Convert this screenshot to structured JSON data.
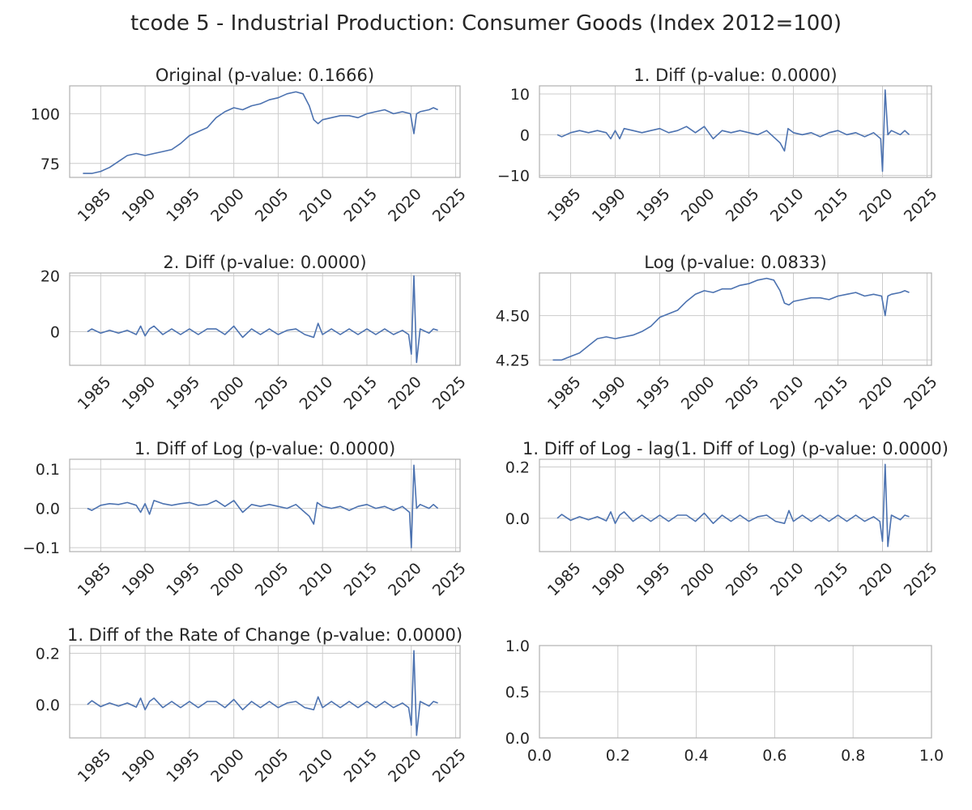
{
  "figure_title": "tcode 5 - Industrial Production: Consumer Goods (Index 2012=100)",
  "colors": {
    "line": "#4c72b0",
    "grid": "#cccccc",
    "axis": "#b0b0b0",
    "text": "#262626"
  },
  "chart_data": [
    {
      "type": "line",
      "title": "Original (p-value: 0.1666)",
      "xlabel": "",
      "ylabel": "",
      "xlim": [
        1981.5,
        2025.5
      ],
      "ylim": [
        68,
        114
      ],
      "xticks": [
        1985,
        1990,
        1995,
        2000,
        2005,
        2010,
        2015,
        2020,
        2025
      ],
      "xtick_labels": [
        "1985",
        "1990",
        "1995",
        "2000",
        "2005",
        "2010",
        "2015",
        "2020",
        "2025"
      ],
      "yticks": [
        75,
        100
      ],
      "ytick_labels": [
        "75",
        "100"
      ],
      "grid": true,
      "x": [
        1983,
        1984,
        1985,
        1986,
        1987,
        1988,
        1989,
        1990,
        1991,
        1992,
        1993,
        1994,
        1995,
        1996,
        1997,
        1998,
        1999,
        2000,
        2001,
        2002,
        2003,
        2004,
        2005,
        2006,
        2007,
        2007.8,
        2008.5,
        2009,
        2009.5,
        2010,
        2011,
        2012,
        2013,
        2014,
        2015,
        2016,
        2017,
        2018,
        2019,
        2019.9,
        2020.3,
        2020.6,
        2021,
        2022,
        2022.5,
        2023
      ],
      "y": [
        70,
        70,
        71,
        73,
        76,
        79,
        80,
        79,
        80,
        81,
        82,
        85,
        89,
        91,
        93,
        98,
        101,
        103,
        102,
        104,
        105,
        107,
        108,
        110,
        111,
        110,
        104,
        97,
        95,
        97,
        98,
        99,
        99,
        98,
        100,
        101,
        102,
        100,
        101,
        100,
        90,
        100,
        101,
        102,
        103,
        102
      ]
    },
    {
      "type": "line",
      "title": "1. Diff (p-value: 0.0000)",
      "xlabel": "",
      "ylabel": "",
      "xlim": [
        1981.5,
        2025.5
      ],
      "ylim": [
        -10.5,
        12
      ],
      "xticks": [
        1985,
        1990,
        1995,
        2000,
        2005,
        2010,
        2015,
        2020,
        2025
      ],
      "xtick_labels": [
        "1985",
        "1990",
        "1995",
        "2000",
        "2005",
        "2010",
        "2015",
        "2020",
        "2025"
      ],
      "yticks": [
        -10,
        0,
        10
      ],
      "ytick_labels": [
        "−10",
        "0",
        "10"
      ],
      "grid": true,
      "x": [
        1983.5,
        1984,
        1985,
        1986,
        1987,
        1988,
        1989,
        1989.5,
        1990,
        1990.5,
        1991,
        1992,
        1993,
        1994,
        1995,
        1996,
        1997,
        1998,
        1999,
        2000,
        2001,
        2002,
        2003,
        2004,
        2005,
        2006,
        2007,
        2008,
        2008.5,
        2009,
        2009.4,
        2010,
        2011,
        2012,
        2013,
        2014,
        2015,
        2016,
        2017,
        2018,
        2019,
        2019.8,
        2020.0,
        2020.3,
        2020.6,
        2021,
        2022,
        2022.5,
        2023
      ],
      "y": [
        0,
        -0.5,
        0.5,
        1,
        0.5,
        1,
        0.5,
        -1,
        1,
        -1,
        1.5,
        1,
        0.5,
        1,
        1.5,
        0.5,
        1,
        2,
        0.5,
        2,
        -1,
        1,
        0.5,
        1,
        0.5,
        0,
        1,
        -1,
        -2,
        -4,
        1.5,
        0.5,
        0,
        0.5,
        -0.5,
        0.5,
        1,
        0,
        0.5,
        -0.5,
        0.5,
        -1,
        -9,
        11,
        0,
        1,
        0,
        1,
        0
      ]
    },
    {
      "type": "line",
      "title": "2. Diff (p-value: 0.0000)",
      "xlabel": "",
      "ylabel": "",
      "xlim": [
        1981.5,
        2025.5
      ],
      "ylim": [
        -12,
        21
      ],
      "xticks": [
        1985,
        1990,
        1995,
        2000,
        2005,
        2010,
        2015,
        2020,
        2025
      ],
      "xtick_labels": [
        "1985",
        "1990",
        "1995",
        "2000",
        "2005",
        "2010",
        "2015",
        "2020",
        "2025"
      ],
      "yticks": [
        0,
        20
      ],
      "ytick_labels": [
        "0",
        "20"
      ],
      "grid": true,
      "x": [
        1983.5,
        1984,
        1985,
        1986,
        1987,
        1988,
        1989,
        1989.5,
        1990,
        1990.5,
        1991,
        1992,
        1993,
        1994,
        1995,
        1996,
        1997,
        1998,
        1999,
        2000,
        2001,
        2002,
        2003,
        2004,
        2005,
        2006,
        2007,
        2008,
        2009,
        2009.5,
        2010,
        2011,
        2012,
        2013,
        2014,
        2015,
        2016,
        2017,
        2018,
        2019,
        2019.7,
        2020.0,
        2020.3,
        2020.6,
        2021,
        2022,
        2022.5,
        2023
      ],
      "y": [
        0,
        1,
        -0.5,
        0.5,
        -0.5,
        0.5,
        -1,
        2,
        -1.5,
        1,
        2,
        -1,
        1,
        -1,
        1,
        -1,
        1,
        1,
        -1,
        2,
        -2,
        1,
        -1,
        1,
        -1,
        0.5,
        1,
        -1,
        -2,
        3,
        -1,
        1,
        -1,
        1,
        -1,
        1,
        -1,
        1,
        -1,
        0.5,
        -1,
        -8,
        20,
        -11,
        1,
        -0.5,
        1,
        0.5
      ]
    },
    {
      "type": "line",
      "title": "Log (p-value: 0.0833)",
      "xlabel": "",
      "ylabel": "",
      "xlim": [
        1981.5,
        2025.5
      ],
      "ylim": [
        4.22,
        4.74
      ],
      "xticks": [
        1985,
        1990,
        1995,
        2000,
        2005,
        2010,
        2015,
        2020,
        2025
      ],
      "xtick_labels": [
        "1985",
        "1990",
        "1995",
        "2000",
        "2005",
        "2010",
        "2015",
        "2020",
        "2025"
      ],
      "yticks": [
        4.25,
        4.5
      ],
      "ytick_labels": [
        "4.25",
        "4.50"
      ],
      "grid": true,
      "x": [
        1983,
        1984,
        1985,
        1986,
        1987,
        1988,
        1989,
        1990,
        1991,
        1992,
        1993,
        1994,
        1995,
        1996,
        1997,
        1998,
        1999,
        2000,
        2001,
        2002,
        2003,
        2004,
        2005,
        2006,
        2007,
        2007.8,
        2008.5,
        2009,
        2009.5,
        2010,
        2011,
        2012,
        2013,
        2014,
        2015,
        2016,
        2017,
        2018,
        2019,
        2019.9,
        2020.3,
        2020.6,
        2021,
        2022,
        2022.5,
        2023
      ],
      "y": [
        4.25,
        4.25,
        4.27,
        4.29,
        4.33,
        4.37,
        4.38,
        4.37,
        4.38,
        4.39,
        4.41,
        4.44,
        4.49,
        4.51,
        4.53,
        4.58,
        4.62,
        4.64,
        4.63,
        4.65,
        4.65,
        4.67,
        4.68,
        4.7,
        4.71,
        4.7,
        4.64,
        4.57,
        4.56,
        4.58,
        4.59,
        4.6,
        4.6,
        4.59,
        4.61,
        4.62,
        4.63,
        4.61,
        4.62,
        4.61,
        4.5,
        4.61,
        4.62,
        4.63,
        4.64,
        4.63
      ]
    },
    {
      "type": "line",
      "title": "1. Diff of Log (p-value: 0.0000)",
      "xlabel": "",
      "ylabel": "",
      "xlim": [
        1981.5,
        2025.5
      ],
      "ylim": [
        -0.11,
        0.125
      ],
      "xticks": [
        1985,
        1990,
        1995,
        2000,
        2005,
        2010,
        2015,
        2020,
        2025
      ],
      "xtick_labels": [
        "1985",
        "1990",
        "1995",
        "2000",
        "2005",
        "2010",
        "2015",
        "2020",
        "2025"
      ],
      "yticks": [
        -0.1,
        0.0,
        0.1
      ],
      "ytick_labels": [
        "−0.1",
        "0.0",
        "0.1"
      ],
      "grid": true,
      "x": [
        1983.5,
        1984,
        1985,
        1986,
        1987,
        1988,
        1989,
        1989.5,
        1990,
        1990.5,
        1991,
        1992,
        1993,
        1994,
        1995,
        1996,
        1997,
        1998,
        1999,
        2000,
        2001,
        2002,
        2003,
        2004,
        2005,
        2006,
        2007,
        2008,
        2008.5,
        2009,
        2009.4,
        2010,
        2011,
        2012,
        2013,
        2014,
        2015,
        2016,
        2017,
        2018,
        2019,
        2019.8,
        2020.0,
        2020.3,
        2020.6,
        2021,
        2022,
        2022.5,
        2023
      ],
      "y": [
        0,
        -0.005,
        0.008,
        0.012,
        0.01,
        0.015,
        0.008,
        -0.01,
        0.012,
        -0.015,
        0.02,
        0.012,
        0.008,
        0.012,
        0.015,
        0.008,
        0.01,
        0.02,
        0.005,
        0.02,
        -0.01,
        0.01,
        0.005,
        0.01,
        0.005,
        0,
        0.01,
        -0.01,
        -0.02,
        -0.04,
        0.015,
        0.005,
        0,
        0.005,
        -0.005,
        0.005,
        0.01,
        0,
        0.005,
        -0.005,
        0.005,
        -0.01,
        -0.1,
        0.11,
        0,
        0.01,
        0,
        0.01,
        0
      ]
    },
    {
      "type": "line",
      "title": "1. Diff of Log - lag(1. Diff of Log) (p-value: 0.0000)",
      "xlabel": "",
      "ylabel": "",
      "xlim": [
        1981.5,
        2025.5
      ],
      "ylim": [
        -0.13,
        0.23
      ],
      "xticks": [
        1985,
        1990,
        1995,
        2000,
        2005,
        2010,
        2015,
        2020,
        2025
      ],
      "xtick_labels": [
        "1985",
        "1990",
        "1995",
        "2000",
        "2005",
        "2010",
        "2015",
        "2020",
        "2025"
      ],
      "yticks": [
        0.0,
        0.2
      ],
      "ytick_labels": [
        "0.0",
        "0.2"
      ],
      "grid": true,
      "x": [
        1983.5,
        1984,
        1985,
        1986,
        1987,
        1988,
        1989,
        1989.5,
        1990,
        1990.5,
        1991,
        1992,
        1993,
        1994,
        1995,
        1996,
        1997,
        1998,
        1999,
        2000,
        2001,
        2002,
        2003,
        2004,
        2005,
        2006,
        2007,
        2008,
        2009,
        2009.5,
        2010,
        2011,
        2012,
        2013,
        2014,
        2015,
        2016,
        2017,
        2018,
        2019,
        2019.7,
        2020.0,
        2020.3,
        2020.6,
        2021,
        2022,
        2022.5,
        2023
      ],
      "y": [
        0,
        0.015,
        -0.008,
        0.006,
        -0.006,
        0.006,
        -0.01,
        0.025,
        -0.02,
        0.012,
        0.025,
        -0.012,
        0.012,
        -0.012,
        0.012,
        -0.012,
        0.012,
        0.012,
        -0.012,
        0.02,
        -0.02,
        0.012,
        -0.012,
        0.012,
        -0.012,
        0.006,
        0.012,
        -0.012,
        -0.02,
        0.03,
        -0.012,
        0.012,
        -0.012,
        0.012,
        -0.012,
        0.012,
        -0.012,
        0.012,
        -0.012,
        0.006,
        -0.012,
        -0.09,
        0.21,
        -0.11,
        0.012,
        -0.006,
        0.012,
        0.006
      ]
    },
    {
      "type": "line",
      "title": "1. Diff of the Rate of Change (p-value: 0.0000)",
      "xlabel": "",
      "ylabel": "",
      "xlim": [
        1981.5,
        2025.5
      ],
      "ylim": [
        -0.13,
        0.23
      ],
      "xticks": [
        1985,
        1990,
        1995,
        2000,
        2005,
        2010,
        2015,
        2020,
        2025
      ],
      "xtick_labels": [
        "1985",
        "1990",
        "1995",
        "2000",
        "2005",
        "2010",
        "2015",
        "2020",
        "2025"
      ],
      "yticks": [
        0.0,
        0.2
      ],
      "ytick_labels": [
        "0.0",
        "0.2"
      ],
      "grid": true,
      "x": [
        1983.5,
        1984,
        1985,
        1986,
        1987,
        1988,
        1989,
        1989.5,
        1990,
        1990.5,
        1991,
        1992,
        1993,
        1994,
        1995,
        1996,
        1997,
        1998,
        1999,
        2000,
        2001,
        2002,
        2003,
        2004,
        2005,
        2006,
        2007,
        2008,
        2009,
        2009.5,
        2010,
        2011,
        2012,
        2013,
        2014,
        2015,
        2016,
        2017,
        2018,
        2019,
        2019.7,
        2020.0,
        2020.3,
        2020.6,
        2021,
        2022,
        2022.5,
        2023
      ],
      "y": [
        0,
        0.015,
        -0.008,
        0.006,
        -0.006,
        0.006,
        -0.01,
        0.025,
        -0.02,
        0.012,
        0.025,
        -0.012,
        0.012,
        -0.012,
        0.012,
        -0.012,
        0.012,
        0.012,
        -0.012,
        0.02,
        -0.02,
        0.012,
        -0.012,
        0.012,
        -0.012,
        0.006,
        0.012,
        -0.012,
        -0.02,
        0.03,
        -0.012,
        0.012,
        -0.012,
        0.012,
        -0.012,
        0.012,
        -0.012,
        0.012,
        -0.012,
        0.006,
        -0.012,
        -0.08,
        0.21,
        -0.12,
        0.012,
        -0.006,
        0.012,
        0.006
      ]
    },
    {
      "type": "line",
      "title": "",
      "xlabel": "",
      "ylabel": "",
      "xlim": [
        0,
        1
      ],
      "ylim": [
        0,
        1
      ],
      "xticks": [
        0,
        0.2,
        0.4,
        0.6,
        0.8,
        1.0
      ],
      "xtick_labels": [
        "0.0",
        "0.2",
        "0.4",
        "0.6",
        "0.8",
        "1.0"
      ],
      "yticks": [
        0,
        0.5,
        1.0
      ],
      "ytick_labels": [
        "0.0",
        "0.5",
        "1.0"
      ],
      "grid": true,
      "rotate_xticks": false,
      "x": [],
      "y": []
    }
  ]
}
